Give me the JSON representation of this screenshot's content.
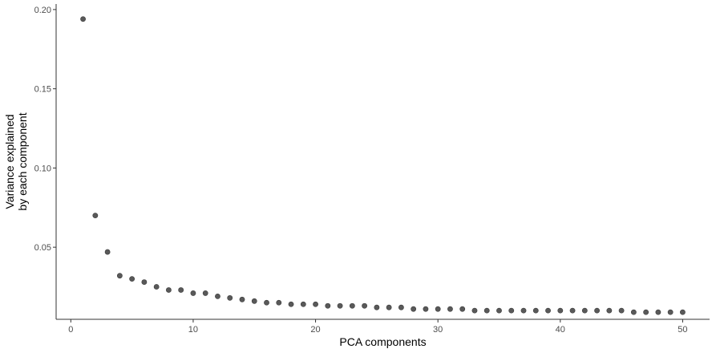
{
  "chart_data": {
    "type": "scatter",
    "title": "",
    "xlabel": "PCA components",
    "ylabel_lines": [
      "Variance explained",
      "by each component"
    ],
    "xlim": [
      -1.2,
      52.2
    ],
    "ylim": [
      0.0045,
      0.2035
    ],
    "xticks": [
      0,
      10,
      20,
      30,
      40,
      50
    ],
    "xtick_labels": [
      "0",
      "10",
      "20",
      "30",
      "40",
      "50"
    ],
    "yticks": [
      0.05,
      0.1,
      0.15,
      0.2
    ],
    "ytick_labels": [
      "0.05",
      "0.10",
      "0.15",
      "0.20"
    ],
    "grid": false,
    "legend": "none",
    "point_color": "#595959",
    "axis_color": "#333333",
    "series": [
      {
        "x": [
          1,
          2,
          3,
          4,
          5,
          6,
          7,
          8,
          9,
          10,
          11,
          12,
          13,
          14,
          15,
          16,
          17,
          18,
          19,
          20,
          21,
          22,
          23,
          24,
          25,
          26,
          27,
          28,
          29,
          30,
          31,
          32,
          33,
          34,
          35,
          36,
          37,
          38,
          39,
          40,
          41,
          42,
          43,
          44,
          45,
          46,
          47,
          48,
          49,
          50
        ],
        "y": [
          0.194,
          0.07,
          0.047,
          0.032,
          0.03,
          0.028,
          0.025,
          0.023,
          0.023,
          0.021,
          0.021,
          0.019,
          0.018,
          0.017,
          0.016,
          0.015,
          0.015,
          0.014,
          0.014,
          0.014,
          0.013,
          0.013,
          0.013,
          0.013,
          0.012,
          0.012,
          0.012,
          0.011,
          0.011,
          0.011,
          0.011,
          0.011,
          0.01,
          0.01,
          0.01,
          0.01,
          0.01,
          0.01,
          0.01,
          0.01,
          0.01,
          0.01,
          0.01,
          0.01,
          0.01,
          0.009,
          0.009,
          0.009,
          0.009,
          0.009
        ]
      }
    ]
  }
}
